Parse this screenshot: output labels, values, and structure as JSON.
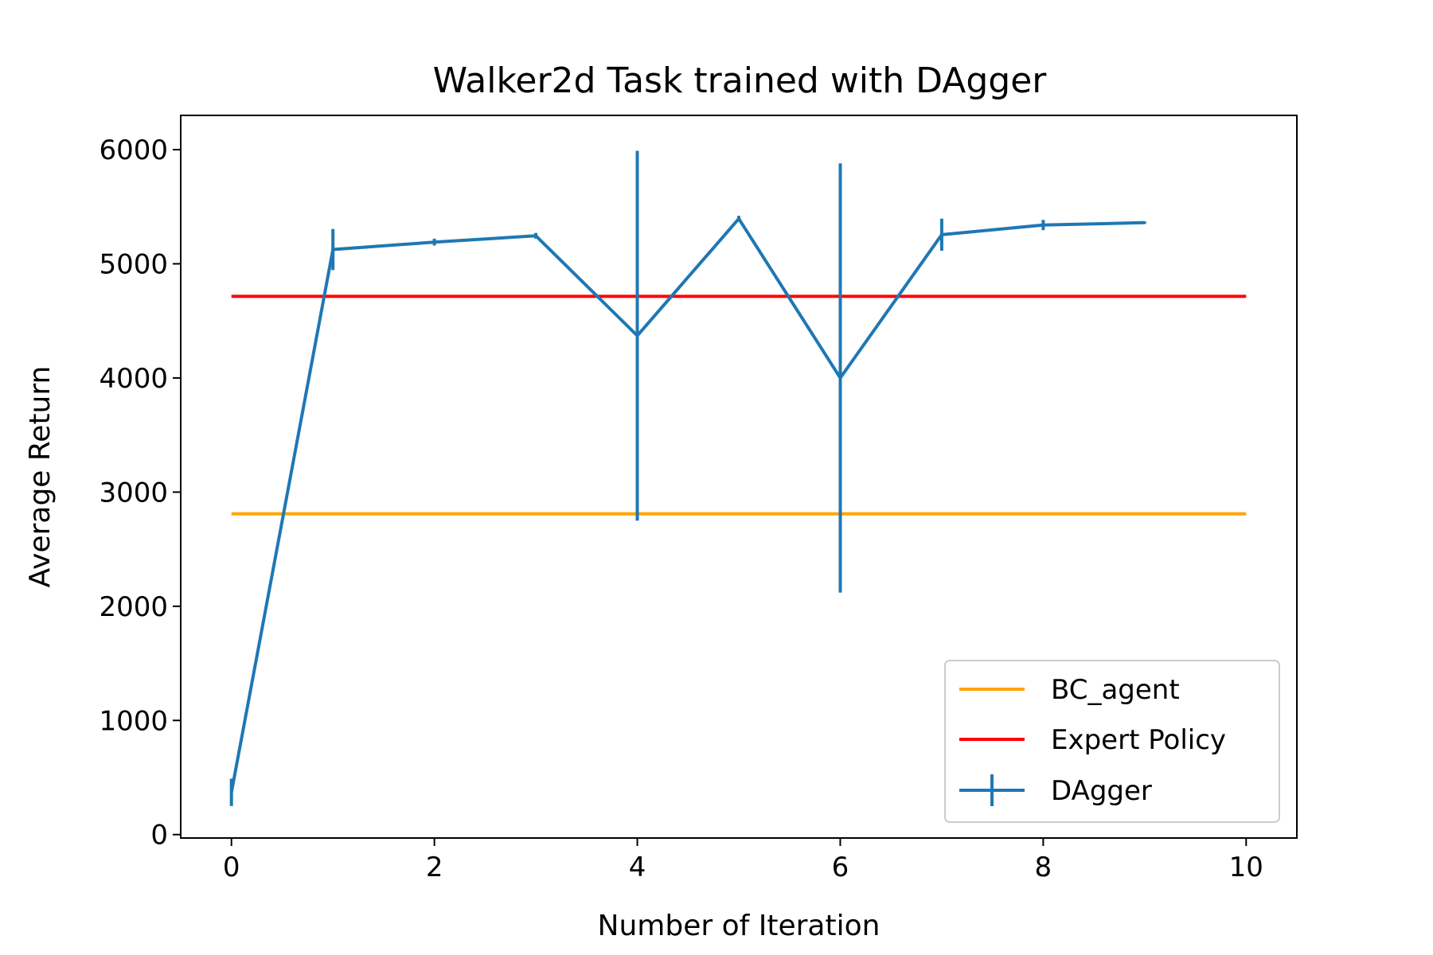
{
  "chart_data": {
    "type": "line",
    "title": "Walker2d Task trained with DAgger",
    "xlabel": "Number of Iteration",
    "ylabel": "Average Return",
    "xlim": [
      -0.5,
      10.5
    ],
    "ylim": [
      -30,
      6300
    ],
    "xticks": [
      0,
      2,
      4,
      6,
      8,
      10
    ],
    "yticks": [
      0,
      1000,
      2000,
      3000,
      4000,
      5000,
      6000
    ],
    "grid": false,
    "legend_position": "lower-right",
    "series": [
      {
        "name": "BC_agent",
        "kind": "hline",
        "color": "#ffa500",
        "x": [
          0,
          10
        ],
        "y": [
          2810,
          2810
        ]
      },
      {
        "name": "Expert Policy",
        "kind": "hline",
        "color": "#ff0000",
        "x": [
          0,
          10
        ],
        "y": [
          4715,
          4715
        ]
      },
      {
        "name": "DAgger",
        "kind": "errorbar",
        "color": "#1f77b4",
        "x": [
          0,
          1,
          2,
          3,
          4,
          5,
          6,
          7,
          8,
          9
        ],
        "y": [
          370,
          5125,
          5190,
          5245,
          4370,
          5395,
          4000,
          5255,
          5340,
          5360
        ],
        "yerr": [
          120,
          180,
          30,
          25,
          1620,
          25,
          1880,
          140,
          45,
          10
        ]
      }
    ]
  }
}
